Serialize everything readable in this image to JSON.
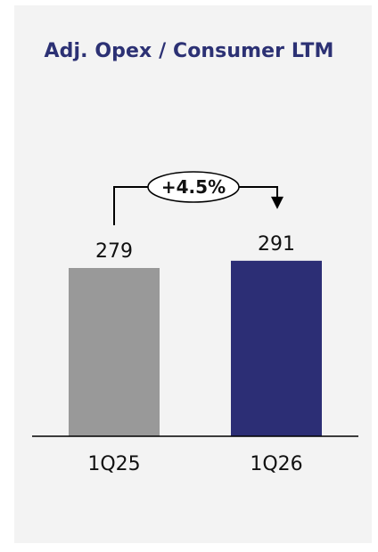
{
  "chart_data": {
    "type": "bar",
    "title": "Adj. Opex / Consumer LTM",
    "categories": [
      "1Q25",
      "1Q26"
    ],
    "values": [
      279,
      291
    ],
    "value_labels": [
      "279",
      "291"
    ],
    "change_label": "+4.5%",
    "ylim": [
      0,
      310
    ],
    "grid": false,
    "colors": {
      "bars": [
        "#999999",
        "#2c2e75"
      ],
      "title": "#2c3174",
      "panel": "#f3f3f3"
    }
  }
}
